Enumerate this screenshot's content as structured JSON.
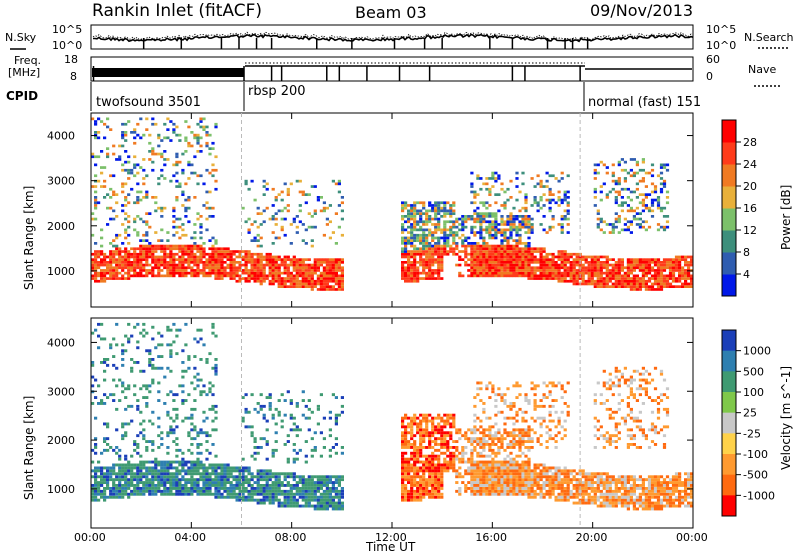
{
  "header": {
    "station": "Rankin Inlet (fitACF)",
    "beam": "Beam 03",
    "date": "09/Nov/2013"
  },
  "noise_panel": {
    "left_label": "N.Sky",
    "right_label": "N.Search",
    "left_ticks": [
      "10^5",
      "10^0"
    ],
    "right_ticks": [
      "10^5",
      "10^0"
    ]
  },
  "freq_panel": {
    "left_label_line1": "Freq.",
    "left_label_line2": "[MHz]",
    "right_label": "Nave",
    "left_ticks": [
      "18",
      "8"
    ],
    "right_ticks": [
      "60",
      "0"
    ]
  },
  "cpid": {
    "label": "CPID",
    "segments": [
      "twofsound 3501",
      "rbsp 200",
      "normal (fast) 151"
    ]
  },
  "time_axis": {
    "label": "Time UT",
    "ticks": [
      "00:00",
      "04:00",
      "08:00",
      "12:00",
      "16:00",
      "20:00",
      "00:00"
    ]
  },
  "chart_data": [
    {
      "type": "heatmap",
      "title": "",
      "xlabel": "",
      "ylabel": "Slant Range [km]",
      "ytick_labels": [
        "1000",
        "2000",
        "3000",
        "4000"
      ],
      "ylim": [
        200,
        4500
      ],
      "xlim": [
        "00:00",
        "24:00"
      ],
      "colorbar": {
        "label": "Power [dB]",
        "tick_labels": [
          "4",
          "8",
          "12",
          "16",
          "20",
          "24",
          "28"
        ],
        "colors": [
          "#0018e8",
          "#2f5db0",
          "#3d8f7c",
          "#7cc06a",
          "#e8b03a",
          "#f07a22",
          "#ff3b1a",
          "#ff0000"
        ]
      },
      "mode_boundaries_ut": [
        6.0,
        19.5
      ]
    },
    {
      "type": "heatmap",
      "title": "",
      "xlabel": "Time UT",
      "ylabel": "Slant Range [km]",
      "ytick_labels": [
        "1000",
        "2000",
        "3000",
        "4000"
      ],
      "ylim": [
        200,
        4500
      ],
      "xlim": [
        "00:00",
        "24:00"
      ],
      "colorbar": {
        "label": "Velocity [m s^-1]",
        "tick_labels": [
          "1000",
          "500",
          "100",
          "25",
          "-25",
          "-100",
          "-500",
          "-1000"
        ],
        "colors": [
          "#1b3fb8",
          "#2e7fb0",
          "#3f9a72",
          "#7fc84a",
          "#c8c8c8",
          "#ffd24a",
          "#ff9a30",
          "#ff6a10",
          "#ff0000"
        ]
      },
      "mode_boundaries_ut": [
        6.0,
        19.5
      ]
    }
  ]
}
